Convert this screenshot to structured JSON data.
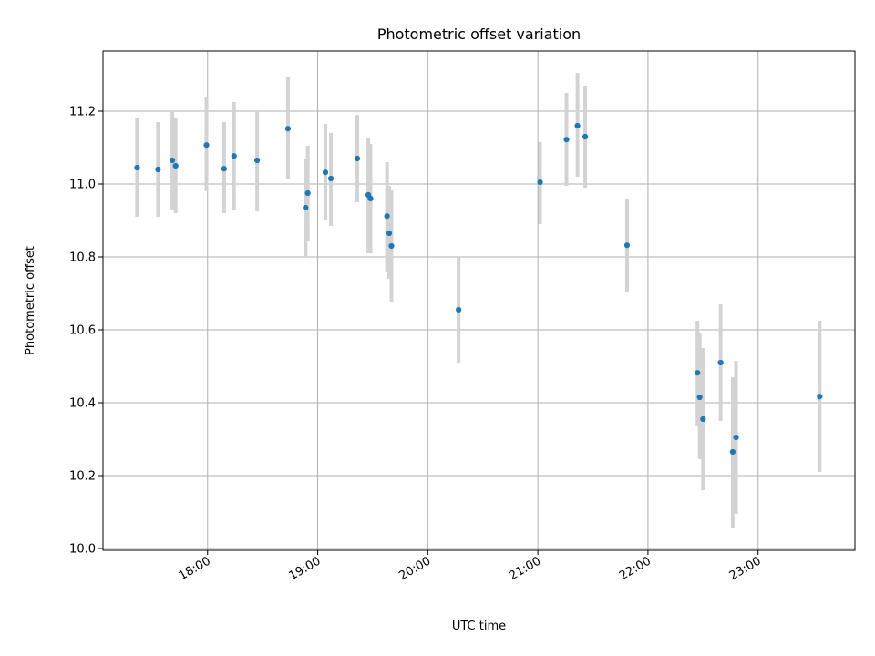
{
  "chart_data": {
    "type": "scatter",
    "title": "Photometric offset variation",
    "xlabel": "UTC time",
    "ylabel": "Photometric offset",
    "x_unit": "hours (UTC time of day)",
    "xlim": [
      17.05,
      23.88
    ],
    "ylim": [
      9.995,
      11.365
    ],
    "x_ticks": [
      18,
      19,
      20,
      21,
      22,
      23
    ],
    "x_tick_labels": [
      "18:00",
      "19:00",
      "20:00",
      "21:00",
      "22:00",
      "23:00"
    ],
    "y_ticks": [
      10.0,
      10.2,
      10.4,
      10.6,
      10.8,
      11.0,
      11.2
    ],
    "y_tick_labels": [
      "10.0",
      "10.2",
      "10.4",
      "10.6",
      "10.8",
      "11.0",
      "11.2"
    ],
    "grid": true,
    "point_color": "#1f77b4",
    "errorbar_color": "#d3d3d3",
    "points": [
      {
        "x": 17.36,
        "y": 11.045,
        "lo": 10.91,
        "hi": 11.18
      },
      {
        "x": 17.55,
        "y": 11.04,
        "lo": 10.91,
        "hi": 11.17
      },
      {
        "x": 17.68,
        "y": 11.065,
        "lo": 10.93,
        "hi": 11.2
      },
      {
        "x": 17.71,
        "y": 11.05,
        "lo": 10.92,
        "hi": 11.18
      },
      {
        "x": 17.99,
        "y": 11.107,
        "lo": 10.98,
        "hi": 11.24
      },
      {
        "x": 18.15,
        "y": 11.042,
        "lo": 10.92,
        "hi": 11.17
      },
      {
        "x": 18.24,
        "y": 11.077,
        "lo": 10.93,
        "hi": 11.225
      },
      {
        "x": 18.45,
        "y": 11.065,
        "lo": 10.925,
        "hi": 11.2
      },
      {
        "x": 18.73,
        "y": 11.152,
        "lo": 11.015,
        "hi": 11.295
      },
      {
        "x": 18.89,
        "y": 10.935,
        "lo": 10.8,
        "hi": 11.07
      },
      {
        "x": 18.91,
        "y": 10.975,
        "lo": 10.845,
        "hi": 11.105
      },
      {
        "x": 19.07,
        "y": 11.032,
        "lo": 10.9,
        "hi": 11.165
      },
      {
        "x": 19.12,
        "y": 11.015,
        "lo": 10.885,
        "hi": 11.14
      },
      {
        "x": 19.36,
        "y": 11.07,
        "lo": 10.95,
        "hi": 11.19
      },
      {
        "x": 19.46,
        "y": 10.97,
        "lo": 10.81,
        "hi": 11.125
      },
      {
        "x": 19.48,
        "y": 10.96,
        "lo": 10.81,
        "hi": 11.11
      },
      {
        "x": 19.63,
        "y": 10.912,
        "lo": 10.76,
        "hi": 11.06
      },
      {
        "x": 19.65,
        "y": 10.865,
        "lo": 10.74,
        "hi": 10.995
      },
      {
        "x": 19.67,
        "y": 10.83,
        "lo": 10.675,
        "hi": 10.985
      },
      {
        "x": 20.28,
        "y": 10.655,
        "lo": 10.51,
        "hi": 10.8
      },
      {
        "x": 21.02,
        "y": 11.005,
        "lo": 10.89,
        "hi": 11.115
      },
      {
        "x": 21.26,
        "y": 11.122,
        "lo": 10.995,
        "hi": 11.25
      },
      {
        "x": 21.36,
        "y": 11.16,
        "lo": 11.02,
        "hi": 11.305
      },
      {
        "x": 21.43,
        "y": 11.13,
        "lo": 10.99,
        "hi": 11.27
      },
      {
        "x": 21.81,
        "y": 10.832,
        "lo": 10.705,
        "hi": 10.96
      },
      {
        "x": 22.45,
        "y": 10.482,
        "lo": 10.335,
        "hi": 10.625
      },
      {
        "x": 22.47,
        "y": 10.415,
        "lo": 10.245,
        "hi": 10.59
      },
      {
        "x": 22.5,
        "y": 10.355,
        "lo": 10.16,
        "hi": 10.55
      },
      {
        "x": 22.66,
        "y": 10.51,
        "lo": 10.35,
        "hi": 10.67
      },
      {
        "x": 22.77,
        "y": 10.265,
        "lo": 10.055,
        "hi": 10.47
      },
      {
        "x": 22.8,
        "y": 10.305,
        "lo": 10.095,
        "hi": 10.515
      },
      {
        "x": 23.56,
        "y": 10.417,
        "lo": 10.21,
        "hi": 10.625
      }
    ]
  }
}
